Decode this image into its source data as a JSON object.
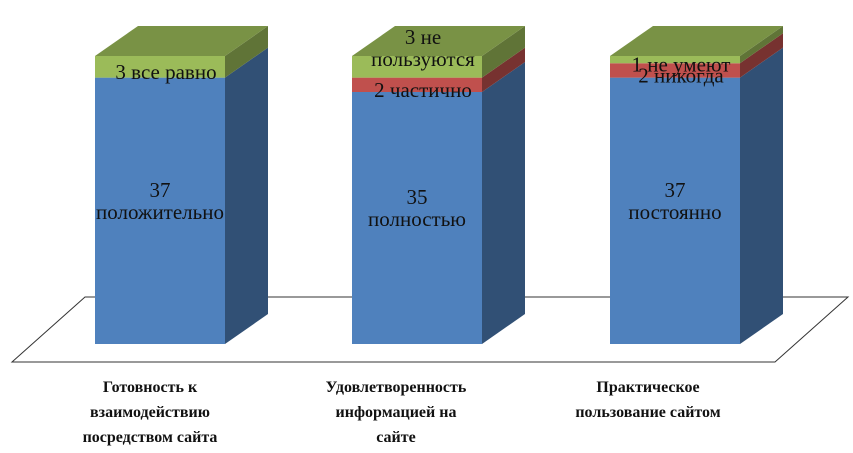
{
  "chart_data": {
    "type": "bar",
    "stacked": true,
    "three_d": true,
    "categories": [
      {
        "lines": [
          "Готовность к",
          "взаимодействию",
          "посредством сайта"
        ]
      },
      {
        "lines": [
          "Удовлетворенность",
          "информацией на",
          "сайте"
        ]
      },
      {
        "lines": [
          "Практическое",
          "пользование сайтом"
        ]
      }
    ],
    "series": [
      {
        "color": "#4f81bd",
        "values": [
          37,
          35,
          37
        ]
      },
      {
        "color": "#c0504d",
        "values": [
          0,
          2,
          2
        ]
      },
      {
        "color": "#9bbb59",
        "values": [
          3,
          3,
          1
        ]
      }
    ],
    "segment_labels": [
      [
        {
          "series": 0,
          "lines": [
            "37",
            "положительно"
          ]
        },
        {
          "series": 2,
          "lines": [
            "3 все равно"
          ]
        }
      ],
      [
        {
          "series": 0,
          "lines": [
            "35",
            "полностью"
          ]
        },
        {
          "series": 1,
          "lines": [
            "2 частично"
          ]
        },
        {
          "series": 2,
          "lines": [
            "3 не",
            "пользуются"
          ]
        }
      ],
      [
        {
          "series": 0,
          "lines": [
            "37",
            "постоянно"
          ]
        },
        {
          "series": 1,
          "lines": [
            "2 никогда"
          ]
        },
        {
          "series": 2,
          "lines": [
            "1 не умеют"
          ]
        }
      ]
    ],
    "ylim": [
      0,
      40
    ],
    "grid": false,
    "legend": "none"
  }
}
